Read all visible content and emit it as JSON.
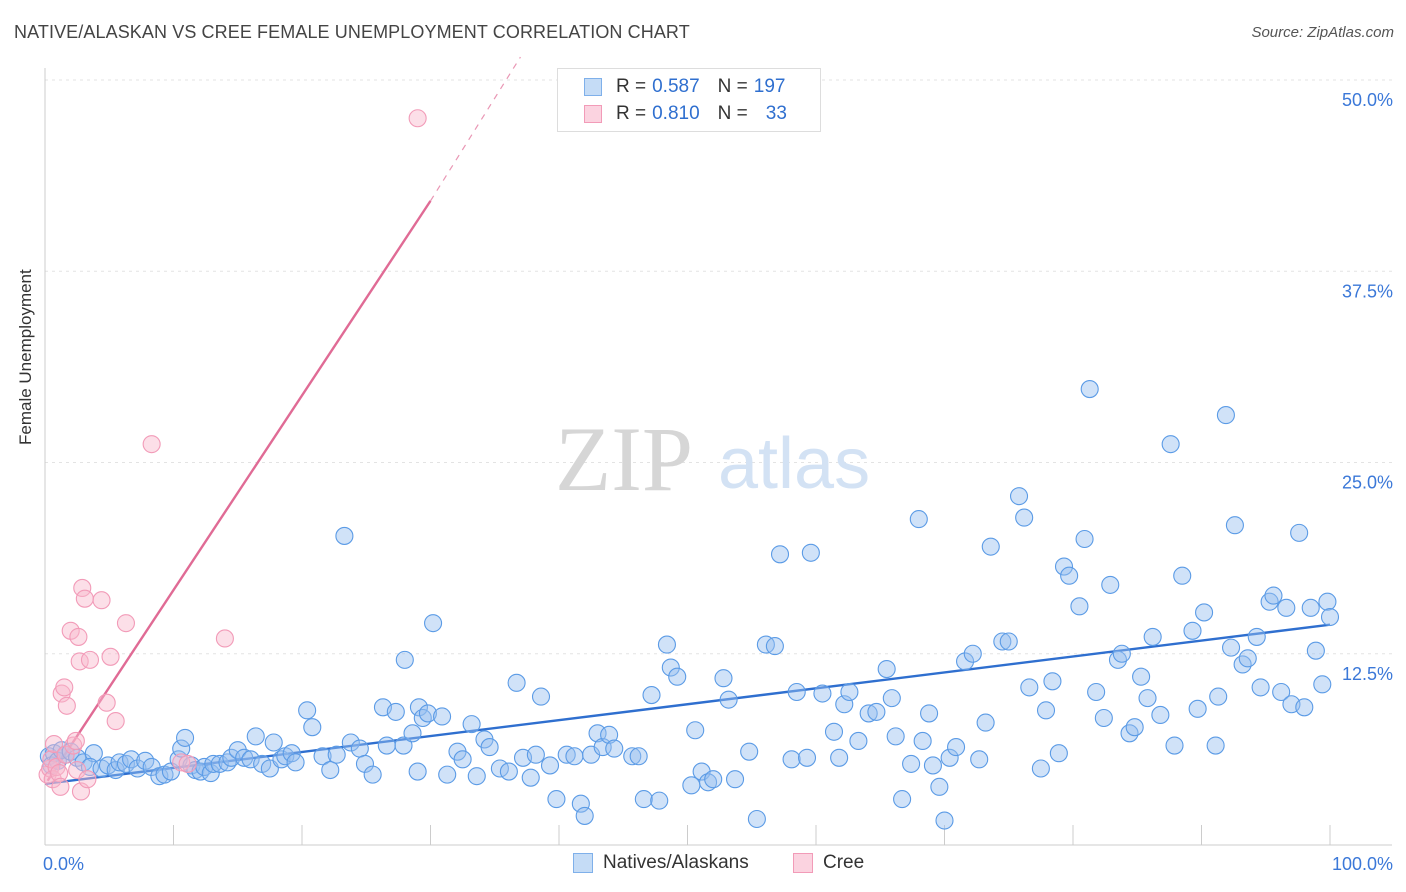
{
  "header": {
    "title": "NATIVE/ALASKAN VS CREE FEMALE UNEMPLOYMENT CORRELATION CHART",
    "source": "Source: ZipAtlas.com"
  },
  "watermark": {
    "part1": "ZIP",
    "part2": "atlas"
  },
  "legend": {
    "rows": [
      {
        "r_label": "R = ",
        "r_value": "0.587",
        "n_label": "N = ",
        "n_value": "197",
        "color": "#7fb0ea",
        "fill": "#c5dcf6"
      },
      {
        "r_label": "R = ",
        "r_value": "0.810",
        "n_label": "N = ",
        "n_value": "33",
        "color": "#f29bb8",
        "fill": "#fbd3e0"
      }
    ]
  },
  "bottom_legend": [
    {
      "label": "Natives/Alaskans",
      "color": "#7fb0ea",
      "fill": "#c5dcf6"
    },
    {
      "label": "Cree",
      "color": "#f29bb8",
      "fill": "#fbd3e0"
    }
  ],
  "chart_data": {
    "type": "scatter",
    "title": "NATIVE/ALASKAN VS CREE FEMALE UNEMPLOYMENT CORRELATION CHART",
    "ylabel": "Female Unemployment",
    "xlabel": "",
    "x_tick_labels": [
      "0.0%",
      "100.0%"
    ],
    "y_tick_labels": [
      "12.5%",
      "25.0%",
      "37.5%",
      "50.0%"
    ],
    "xlim": [
      0,
      100
    ],
    "ylim": [
      0,
      50
    ],
    "y_ticks": [
      12.5,
      25,
      37.5,
      50
    ],
    "grid": "horizontal dashed",
    "series": [
      {
        "name": "Natives/Alaskans",
        "color": "#5b9be6",
        "line_color": "#2f6fcf",
        "trend": {
          "x0": 0,
          "y0": 4.0,
          "x1": 100,
          "y1": 14.4
        },
        "points": [
          [
            0.3,
            5.8
          ],
          [
            0.5,
            5.2
          ],
          [
            0.7,
            6.0
          ],
          [
            1.0,
            5.5
          ],
          [
            1.3,
            6.2
          ],
          [
            1.6,
            5.9
          ],
          [
            2.0,
            6.1
          ],
          [
            2.5,
            5.7
          ],
          [
            3.0,
            5.4
          ],
          [
            3.8,
            6.0
          ],
          [
            3.5,
            5.1
          ],
          [
            4.4,
            5.0
          ],
          [
            4.9,
            5.2
          ],
          [
            5.5,
            4.9
          ],
          [
            5.8,
            5.4
          ],
          [
            6.3,
            5.3
          ],
          [
            6.7,
            5.6
          ],
          [
            7.2,
            5.0
          ],
          [
            7.8,
            5.5
          ],
          [
            8.3,
            5.1
          ],
          [
            8.9,
            4.5
          ],
          [
            9.3,
            4.6
          ],
          [
            9.8,
            4.8
          ],
          [
            10.4,
            5.6
          ],
          [
            10.6,
            6.3
          ],
          [
            10.9,
            7.0
          ],
          [
            11.4,
            5.2
          ],
          [
            11.7,
            4.9
          ],
          [
            12.1,
            4.8
          ],
          [
            12.4,
            5.1
          ],
          [
            12.9,
            4.7
          ],
          [
            13.1,
            5.3
          ],
          [
            13.6,
            5.3
          ],
          [
            14.2,
            5.4
          ],
          [
            14.5,
            5.7
          ],
          [
            15.0,
            6.2
          ],
          [
            15.5,
            5.7
          ],
          [
            16.0,
            5.6
          ],
          [
            16.4,
            7.1
          ],
          [
            16.9,
            5.3
          ],
          [
            17.5,
            5.0
          ],
          [
            17.8,
            6.7
          ],
          [
            18.4,
            5.6
          ],
          [
            18.7,
            5.8
          ],
          [
            19.2,
            6.0
          ],
          [
            19.5,
            5.4
          ],
          [
            20.4,
            8.8
          ],
          [
            20.8,
            7.7
          ],
          [
            21.6,
            5.8
          ],
          [
            22.2,
            4.9
          ],
          [
            22.7,
            5.9
          ],
          [
            23.3,
            20.2
          ],
          [
            23.8,
            6.7
          ],
          [
            24.5,
            6.3
          ],
          [
            24.9,
            5.3
          ],
          [
            25.5,
            4.6
          ],
          [
            26.3,
            9.0
          ],
          [
            26.6,
            6.5
          ],
          [
            27.3,
            8.7
          ],
          [
            27.9,
            6.5
          ],
          [
            28.6,
            7.3
          ],
          [
            29.1,
            9.0
          ],
          [
            29.4,
            8.3
          ],
          [
            29.8,
            8.6
          ],
          [
            28.0,
            12.1
          ],
          [
            29.0,
            4.8
          ],
          [
            30.2,
            14.5
          ],
          [
            30.9,
            8.4
          ],
          [
            31.3,
            4.6
          ],
          [
            32.1,
            6.1
          ],
          [
            32.5,
            5.6
          ],
          [
            33.2,
            7.9
          ],
          [
            33.6,
            4.5
          ],
          [
            34.2,
            6.9
          ],
          [
            34.6,
            6.4
          ],
          [
            35.4,
            5.0
          ],
          [
            36.1,
            4.8
          ],
          [
            36.7,
            10.6
          ],
          [
            37.2,
            5.7
          ],
          [
            37.8,
            4.4
          ],
          [
            38.2,
            5.9
          ],
          [
            38.6,
            9.7
          ],
          [
            39.3,
            5.2
          ],
          [
            39.8,
            3.0
          ],
          [
            40.6,
            5.9
          ],
          [
            41.2,
            5.8
          ],
          [
            41.7,
            2.7
          ],
          [
            42.0,
            1.9
          ],
          [
            42.5,
            5.9
          ],
          [
            43.0,
            7.3
          ],
          [
            43.4,
            6.4
          ],
          [
            43.9,
            7.2
          ],
          [
            44.3,
            6.3
          ],
          [
            45.7,
            5.8
          ],
          [
            46.2,
            5.8
          ],
          [
            46.6,
            3.0
          ],
          [
            47.2,
            9.8
          ],
          [
            47.8,
            2.9
          ],
          [
            48.4,
            13.1
          ],
          [
            48.7,
            11.6
          ],
          [
            49.2,
            11.0
          ],
          [
            50.3,
            3.9
          ],
          [
            50.6,
            7.5
          ],
          [
            51.1,
            4.8
          ],
          [
            51.6,
            4.1
          ],
          [
            52.0,
            4.3
          ],
          [
            52.8,
            10.9
          ],
          [
            53.2,
            9.5
          ],
          [
            53.7,
            4.3
          ],
          [
            54.8,
            6.1
          ],
          [
            55.4,
            1.7
          ],
          [
            56.1,
            13.1
          ],
          [
            56.8,
            13.0
          ],
          [
            57.2,
            19.0
          ],
          [
            58.1,
            5.6
          ],
          [
            58.5,
            10.0
          ],
          [
            59.3,
            5.7
          ],
          [
            59.6,
            19.1
          ],
          [
            60.5,
            9.9
          ],
          [
            61.4,
            7.4
          ],
          [
            61.8,
            5.7
          ],
          [
            62.2,
            9.2
          ],
          [
            62.6,
            10.0
          ],
          [
            63.3,
            6.8
          ],
          [
            64.1,
            8.6
          ],
          [
            64.7,
            8.7
          ],
          [
            65.5,
            11.5
          ],
          [
            65.9,
            9.6
          ],
          [
            66.2,
            7.1
          ],
          [
            66.7,
            3.0
          ],
          [
            67.4,
            5.3
          ],
          [
            68.0,
            21.3
          ],
          [
            68.3,
            6.8
          ],
          [
            68.8,
            8.6
          ],
          [
            69.1,
            5.2
          ],
          [
            69.6,
            3.8
          ],
          [
            70.0,
            1.6
          ],
          [
            70.4,
            5.7
          ],
          [
            70.9,
            6.4
          ],
          [
            71.6,
            12.0
          ],
          [
            72.2,
            12.5
          ],
          [
            72.7,
            5.6
          ],
          [
            73.2,
            8.0
          ],
          [
            73.6,
            19.5
          ],
          [
            74.5,
            13.3
          ],
          [
            75.0,
            13.3
          ],
          [
            75.8,
            22.8
          ],
          [
            76.2,
            21.4
          ],
          [
            76.6,
            10.3
          ],
          [
            77.5,
            5.0
          ],
          [
            77.9,
            8.8
          ],
          [
            78.4,
            10.7
          ],
          [
            78.9,
            6.0
          ],
          [
            79.3,
            18.2
          ],
          [
            79.7,
            17.6
          ],
          [
            80.5,
            15.6
          ],
          [
            80.9,
            20.0
          ],
          [
            81.3,
            29.8
          ],
          [
            81.8,
            10.0
          ],
          [
            82.4,
            8.3
          ],
          [
            82.9,
            17.0
          ],
          [
            83.5,
            12.1
          ],
          [
            83.8,
            12.5
          ],
          [
            84.4,
            7.3
          ],
          [
            84.8,
            7.7
          ],
          [
            85.3,
            11.0
          ],
          [
            85.8,
            9.6
          ],
          [
            86.2,
            13.6
          ],
          [
            86.8,
            8.5
          ],
          [
            87.6,
            26.2
          ],
          [
            87.9,
            6.5
          ],
          [
            88.5,
            17.6
          ],
          [
            89.3,
            14.0
          ],
          [
            89.7,
            8.9
          ],
          [
            90.2,
            15.2
          ],
          [
            91.1,
            6.5
          ],
          [
            91.3,
            9.7
          ],
          [
            91.9,
            28.1
          ],
          [
            92.3,
            12.9
          ],
          [
            92.6,
            20.9
          ],
          [
            93.2,
            11.8
          ],
          [
            93.6,
            12.2
          ],
          [
            94.3,
            13.6
          ],
          [
            94.6,
            10.3
          ],
          [
            95.3,
            15.9
          ],
          [
            95.6,
            16.3
          ],
          [
            96.2,
            10.0
          ],
          [
            96.6,
            15.5
          ],
          [
            97.0,
            9.2
          ],
          [
            97.6,
            20.4
          ],
          [
            98.0,
            9.0
          ],
          [
            98.5,
            15.5
          ],
          [
            98.9,
            12.7
          ],
          [
            99.4,
            10.5
          ],
          [
            99.8,
            15.9
          ],
          [
            100.0,
            14.9
          ]
        ]
      },
      {
        "name": "Cree",
        "color": "#f29bb8",
        "line_color": "#e06b95",
        "trend": {
          "x0": 0.2,
          "y0": 4.2,
          "x1": 30.0,
          "y1": 42.1
        },
        "trend_dashed_to": {
          "x": 37.0,
          "y": 51.5
        },
        "points": [
          [
            0.2,
            4.6
          ],
          [
            0.4,
            5.0
          ],
          [
            0.5,
            5.6
          ],
          [
            0.6,
            4.3
          ],
          [
            0.7,
            6.6
          ],
          [
            0.9,
            5.1
          ],
          [
            1.1,
            4.7
          ],
          [
            1.2,
            3.8
          ],
          [
            1.3,
            9.9
          ],
          [
            1.5,
            10.3
          ],
          [
            1.6,
            5.9
          ],
          [
            1.7,
            9.1
          ],
          [
            2.0,
            14.0
          ],
          [
            2.2,
            6.5
          ],
          [
            2.4,
            6.8
          ],
          [
            2.5,
            4.9
          ],
          [
            2.6,
            13.6
          ],
          [
            2.7,
            12.0
          ],
          [
            2.8,
            3.5
          ],
          [
            2.9,
            16.8
          ],
          [
            3.1,
            16.1
          ],
          [
            3.3,
            4.3
          ],
          [
            3.5,
            12.1
          ],
          [
            4.4,
            16.0
          ],
          [
            4.8,
            9.3
          ],
          [
            5.1,
            12.3
          ],
          [
            5.5,
            8.1
          ],
          [
            6.3,
            14.5
          ],
          [
            8.3,
            26.2
          ],
          [
            10.6,
            5.4
          ],
          [
            11.1,
            5.3
          ],
          [
            14.0,
            13.5
          ],
          [
            29.0,
            47.5
          ]
        ]
      }
    ]
  }
}
